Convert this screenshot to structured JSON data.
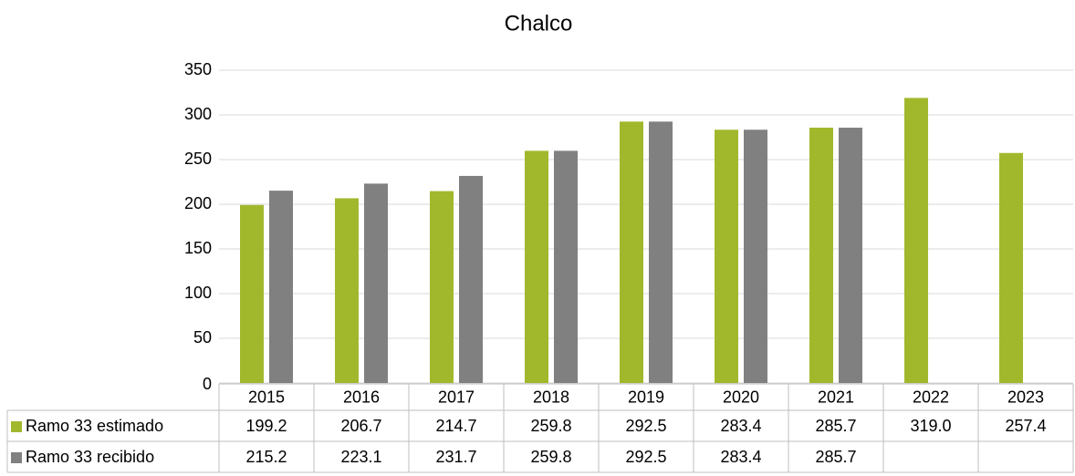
{
  "chart_data": {
    "type": "bar",
    "title": "Chalco",
    "categories": [
      "2015",
      "2016",
      "2017",
      "2018",
      "2019",
      "2020",
      "2021",
      "2022",
      "2023"
    ],
    "series": [
      {
        "name": "Ramo 33 estimado",
        "color": "#a2b82c",
        "values": [
          199.2,
          206.7,
          214.7,
          259.8,
          292.5,
          283.4,
          285.7,
          319.0,
          257.4
        ],
        "value_labels": [
          "199.2",
          "206.7",
          "214.7",
          "259.8",
          "292.5",
          "283.4",
          "285.7",
          "319.0",
          "257.4"
        ]
      },
      {
        "name": "Ramo 33 recibido",
        "color": "#808080",
        "values": [
          215.2,
          223.1,
          231.7,
          259.8,
          292.5,
          283.4,
          285.7,
          null,
          null
        ],
        "value_labels": [
          "215.2",
          "223.1",
          "231.7",
          "259.8",
          "292.5",
          "283.4",
          "285.7",
          null,
          null
        ]
      }
    ],
    "ylim": [
      0,
      350
    ],
    "yticks": [
      0,
      50,
      100,
      150,
      200,
      250,
      300,
      350
    ],
    "grid": true,
    "legend": "table"
  }
}
